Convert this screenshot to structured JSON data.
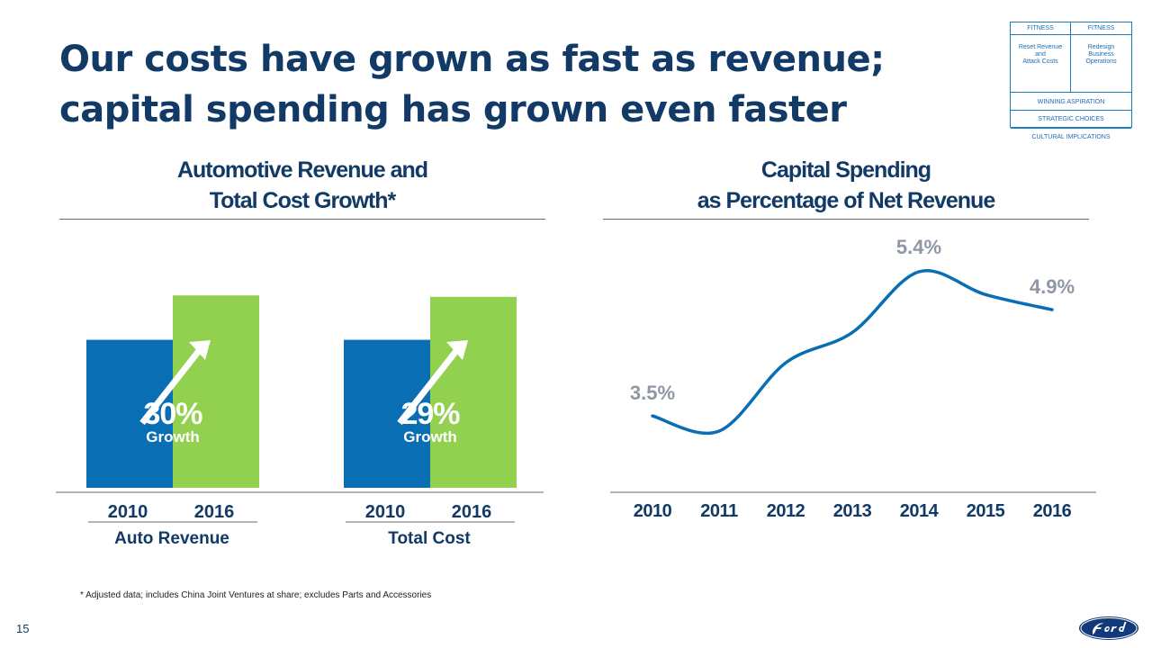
{
  "slide": {
    "title_line1": "Our costs have grown as fast as revenue;",
    "title_line2": "capital spending has grown even faster",
    "footnote": "* Adjusted data; includes China Joint Ventures at share; excludes Parts and Accessories",
    "page_number": "15"
  },
  "framework": {
    "header_left": "FITNESS",
    "header_right": "FITNESS",
    "cell_left": [
      "Reset Revenue",
      "and",
      "Attack Costs"
    ],
    "cell_right": [
      "Redesign",
      "Business",
      "Operations"
    ],
    "row1": "WINNING ASPIRATION",
    "row2": "STRATEGIC CHOICES",
    "row3": "CULTURAL IMPLICATIONS"
  },
  "colors": {
    "blue": "#0a6eb4",
    "green": "#92d050",
    "navy": "#123a66",
    "line": "#0a6eb4",
    "label_gray": "#8e98a5"
  },
  "chart_data": [
    {
      "type": "bar",
      "title_line1": "Automotive Revenue and",
      "title_line2": "Total Cost Growth*",
      "groups": [
        {
          "name": "Auto Revenue",
          "categories": [
            "2010",
            "2016"
          ],
          "values": [
            100,
            130
          ],
          "growth": "30%",
          "growth_label": "Growth"
        },
        {
          "name": "Total Cost",
          "categories": [
            "2010",
            "2016"
          ],
          "values": [
            100,
            129
          ],
          "growth": "29%",
          "growth_label": "Growth"
        }
      ],
      "ylim": [
        0,
        135
      ]
    },
    {
      "type": "line",
      "title_line1": "Capital Spending",
      "title_line2": "as Percentage of Net Revenue",
      "x": [
        "2010",
        "2011",
        "2012",
        "2013",
        "2014",
        "2015",
        "2016"
      ],
      "values": [
        3.5,
        3.3,
        4.2,
        4.6,
        5.4,
        5.1,
        4.9
      ],
      "labels": [
        {
          "index": 0,
          "text": "3.5%"
        },
        {
          "index": 4,
          "text": "5.4%"
        },
        {
          "index": 6,
          "text": "4.9%"
        }
      ]
    }
  ]
}
